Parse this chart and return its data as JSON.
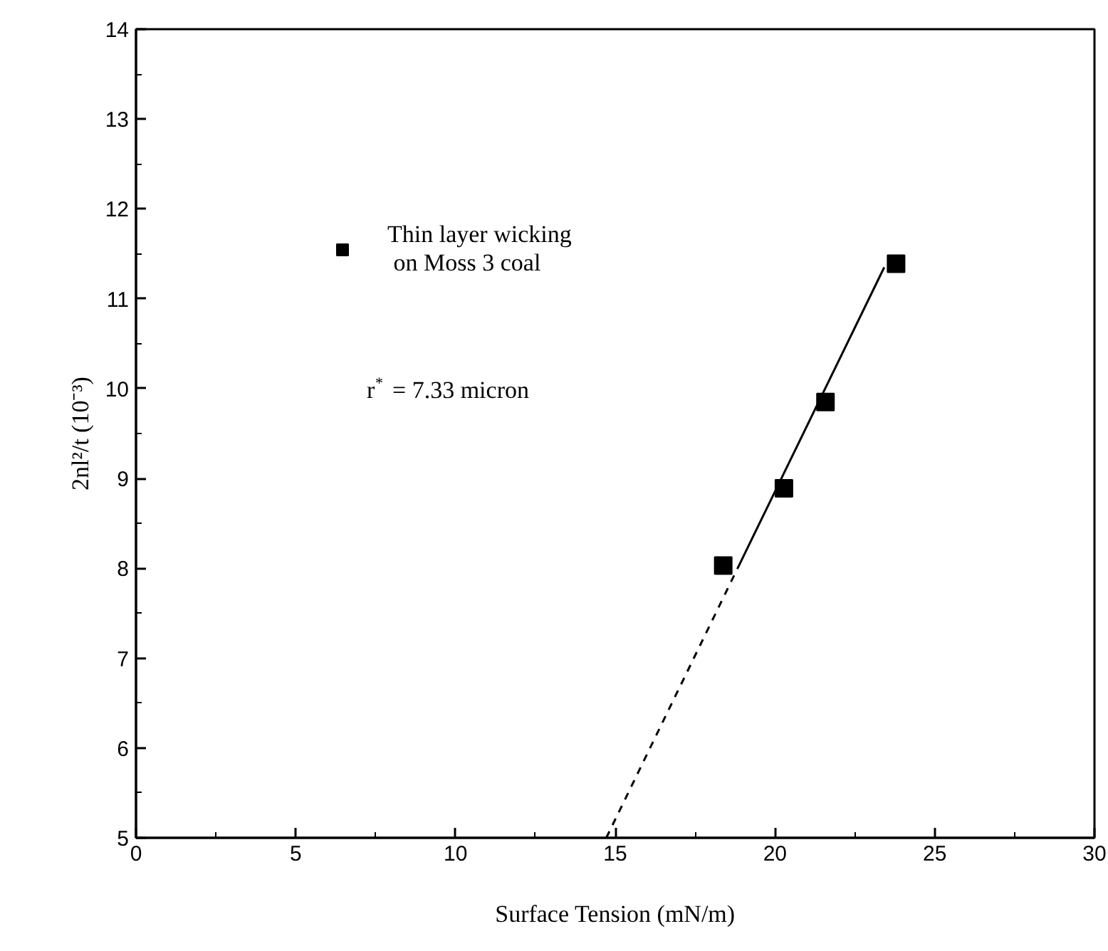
{
  "chart_data": {
    "type": "scatter",
    "xlabel": "Surface Tension (mN/m)",
    "ylabel": "2nl²/t (10⁻³)",
    "xlim": [
      0,
      30
    ],
    "ylim": [
      5,
      14
    ],
    "xticks": [
      0,
      {
        "value": 2.5,
        "label": null
      },
      5,
      {
        "value": 7.5,
        "label": null
      },
      10,
      {
        "value": 12.5,
        "label": null
      },
      15,
      {
        "value": 17.5,
        "label": null
      },
      20,
      {
        "value": 22.5,
        "label": null
      },
      25,
      {
        "value": 27.5,
        "label": null
      },
      30
    ],
    "yticks": [
      5,
      {
        "value": 5.5,
        "label": null
      },
      6,
      {
        "value": 6.5,
        "label": null
      },
      7,
      {
        "value": 7.5,
        "label": null
      },
      8,
      {
        "value": 8.5,
        "label": null
      },
      9,
      {
        "value": 9.5,
        "label": null
      },
      10,
      {
        "value": 10.5,
        "label": null
      },
      11,
      {
        "value": 11.5,
        "label": null
      },
      12,
      {
        "value": 12.5,
        "label": null
      },
      13,
      {
        "value": 13.5,
        "label": null
      },
      14
    ],
    "grid": false,
    "legend": "top left",
    "marker": "square",
    "series": [
      {
        "name": "Thin layer wicking\n on Moss 3 coal",
        "color": "#000000",
        "x": [
          18.38,
          20.28,
          21.58,
          23.79
        ],
        "values": [
          8.03,
          8.89,
          9.85,
          11.39
        ]
      },
      {
        "type": "line",
        "color": "#000000",
        "line_style": "solid",
        "marker": "none",
        "x": [
          18.83,
          23.42
        ],
        "values": [
          8.0,
          11.35
        ]
      },
      {
        "type": "line",
        "color": "#000000",
        "line_style": "dashed",
        "marker": "none",
        "x": [
          14.72,
          18.83
        ],
        "values": [
          5.0,
          8.0
        ]
      }
    ],
    "annotations": [
      "r$^{*}$ = 7.33 micron"
    ]
  }
}
